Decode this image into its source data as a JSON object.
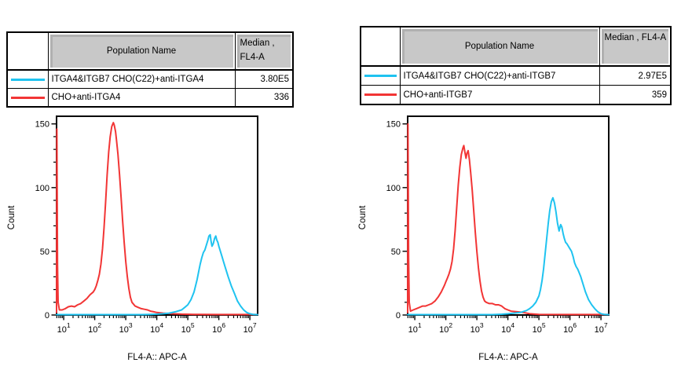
{
  "accent_colors": {
    "cyan": "#1fc3f0",
    "red": "#f23535",
    "table_header_bg": "#c8c8c8"
  },
  "panels": [
    {
      "table": {
        "col_population": "Population Name",
        "col_median": "Median ,\nFL4-A",
        "rows": [
          {
            "color": "#1fc3f0",
            "name": "ITGA4&ITGB7 CHO(C22)+anti-ITGA4",
            "median": "3.80E5"
          },
          {
            "color": "#f23535",
            "name": "CHO+anti-ITGA4",
            "median": "336"
          }
        ]
      }
    },
    {
      "table": {
        "col_population": "Population Name",
        "col_median": "Median , FL4-A",
        "rows": [
          {
            "color": "#1fc3f0",
            "name": "ITGA4&ITGB7 CHO(C22)+anti-ITGB7",
            "median": "2.97E5"
          },
          {
            "color": "#f23535",
            "name": "CHO+anti-ITGB7",
            "median": "359"
          }
        ]
      }
    }
  ],
  "chart_data": [
    {
      "type": "line",
      "title": "",
      "xlabel": "FL4-A:: APC-A",
      "ylabel": "Count",
      "x_scale": "log10",
      "xtick_base": "10",
      "xlim": [
        0.77,
        7.25
      ],
      "ylim": [
        0,
        156
      ],
      "xticks_exponents": [
        1,
        2,
        3,
        4,
        5,
        6,
        7
      ],
      "yticks": [
        0,
        50,
        100,
        150
      ],
      "ytick_minor": 10,
      "grid": false,
      "legend_position": "table-above",
      "series": [
        {
          "name": "CHO+anti-ITGA4",
          "color": "#f23535",
          "median": 336,
          "points": [
            [
              0.77,
              2
            ],
            [
              0.78,
              146
            ],
            [
              0.8,
              40
            ],
            [
              0.82,
              10
            ],
            [
              0.86,
              4
            ],
            [
              0.95,
              4
            ],
            [
              1.05,
              5
            ],
            [
              1.15,
              6.5
            ],
            [
              1.25,
              7
            ],
            [
              1.35,
              6.5
            ],
            [
              1.45,
              8
            ],
            [
              1.55,
              9
            ],
            [
              1.65,
              11
            ],
            [
              1.75,
              13
            ],
            [
              1.85,
              16
            ],
            [
              1.95,
              18
            ],
            [
              2.0,
              20
            ],
            [
              2.05,
              23
            ],
            [
              2.1,
              27
            ],
            [
              2.15,
              32
            ],
            [
              2.2,
              40
            ],
            [
              2.25,
              52
            ],
            [
              2.3,
              68
            ],
            [
              2.35,
              88
            ],
            [
              2.4,
              110
            ],
            [
              2.45,
              128
            ],
            [
              2.5,
              140
            ],
            [
              2.55,
              148
            ],
            [
              2.6,
              151
            ],
            [
              2.63,
              149
            ],
            [
              2.67,
              144
            ],
            [
              2.7,
              138
            ],
            [
              2.75,
              126
            ],
            [
              2.8,
              110
            ],
            [
              2.85,
              92
            ],
            [
              2.9,
              74
            ],
            [
              2.95,
              57
            ],
            [
              3.0,
              42
            ],
            [
              3.05,
              30
            ],
            [
              3.1,
              21
            ],
            [
              3.15,
              14
            ],
            [
              3.2,
              10
            ],
            [
              3.3,
              7
            ],
            [
              3.4,
              6
            ],
            [
              3.5,
              5
            ],
            [
              3.6,
              4.5
            ],
            [
              3.7,
              4
            ],
            [
              3.8,
              3
            ],
            [
              3.9,
              2.5
            ],
            [
              4.0,
              2
            ],
            [
              4.2,
              1.5
            ],
            [
              4.5,
              1
            ],
            [
              4.8,
              0.7
            ],
            [
              5.2,
              0.5
            ],
            [
              6.0,
              0.4
            ],
            [
              7.25,
              0.4
            ]
          ]
        },
        {
          "name": "ITGA4&ITGB7 CHO(C22)+anti-ITGA4",
          "color": "#1fc3f0",
          "median": 380000,
          "points": [
            [
              0.77,
              0.3
            ],
            [
              3.5,
              0.3
            ],
            [
              3.8,
              0.5
            ],
            [
              4.0,
              0.7
            ],
            [
              4.2,
              1
            ],
            [
              4.4,
              1.5
            ],
            [
              4.6,
              2.5
            ],
            [
              4.8,
              4
            ],
            [
              4.9,
              6
            ],
            [
              5.0,
              8
            ],
            [
              5.1,
              12
            ],
            [
              5.2,
              18
            ],
            [
              5.25,
              23
            ],
            [
              5.3,
              28
            ],
            [
              5.35,
              34
            ],
            [
              5.4,
              40
            ],
            [
              5.45,
              45
            ],
            [
              5.5,
              49
            ],
            [
              5.55,
              51
            ],
            [
              5.6,
              55
            ],
            [
              5.65,
              59
            ],
            [
              5.68,
              62
            ],
            [
              5.72,
              63
            ],
            [
              5.75,
              58
            ],
            [
              5.78,
              54
            ],
            [
              5.82,
              56
            ],
            [
              5.86,
              60
            ],
            [
              5.9,
              62
            ],
            [
              5.93,
              59
            ],
            [
              5.97,
              57
            ],
            [
              6.0,
              54
            ],
            [
              6.05,
              50
            ],
            [
              6.1,
              46
            ],
            [
              6.15,
              42
            ],
            [
              6.2,
              38
            ],
            [
              6.3,
              30
            ],
            [
              6.4,
              23
            ],
            [
              6.5,
              17
            ],
            [
              6.6,
              11
            ],
            [
              6.7,
              7
            ],
            [
              6.8,
              4
            ],
            [
              6.9,
              2
            ],
            [
              7.0,
              1
            ],
            [
              7.1,
              0.5
            ],
            [
              7.25,
              0.3
            ]
          ]
        }
      ]
    },
    {
      "type": "line",
      "title": "",
      "xlabel": "FL4-A:: APC-A",
      "ylabel": "Count",
      "x_scale": "log10",
      "xtick_base": "10",
      "xlim": [
        0.77,
        7.25
      ],
      "ylim": [
        0,
        156
      ],
      "xticks_exponents": [
        1,
        2,
        3,
        4,
        5,
        6,
        7
      ],
      "yticks": [
        0,
        50,
        100,
        150
      ],
      "ytick_minor": 10,
      "grid": false,
      "legend_position": "table-above",
      "series": [
        {
          "name": "CHO+anti-ITGB7",
          "color": "#f23535",
          "median": 359,
          "points": [
            [
              0.77,
              2
            ],
            [
              0.78,
              150
            ],
            [
              0.8,
              45
            ],
            [
              0.82,
              10
            ],
            [
              0.86,
              3
            ],
            [
              0.95,
              4
            ],
            [
              1.05,
              5
            ],
            [
              1.15,
              6
            ],
            [
              1.25,
              7
            ],
            [
              1.35,
              7
            ],
            [
              1.45,
              8
            ],
            [
              1.55,
              9
            ],
            [
              1.65,
              11
            ],
            [
              1.75,
              14
            ],
            [
              1.85,
              18
            ],
            [
              1.95,
              23
            ],
            [
              2.0,
              26
            ],
            [
              2.05,
              29
            ],
            [
              2.1,
              32
            ],
            [
              2.15,
              36
            ],
            [
              2.2,
              42
            ],
            [
              2.25,
              52
            ],
            [
              2.3,
              66
            ],
            [
              2.35,
              84
            ],
            [
              2.4,
              102
            ],
            [
              2.45,
              116
            ],
            [
              2.5,
              126
            ],
            [
              2.55,
              131
            ],
            [
              2.58,
              133
            ],
            [
              2.62,
              127
            ],
            [
              2.65,
              123
            ],
            [
              2.68,
              127
            ],
            [
              2.72,
              129
            ],
            [
              2.76,
              122
            ],
            [
              2.8,
              112
            ],
            [
              2.85,
              98
            ],
            [
              2.9,
              82
            ],
            [
              2.95,
              65
            ],
            [
              3.0,
              50
            ],
            [
              3.05,
              37
            ],
            [
              3.1,
              27
            ],
            [
              3.15,
              19
            ],
            [
              3.2,
              14
            ],
            [
              3.25,
              11
            ],
            [
              3.3,
              10
            ],
            [
              3.4,
              9
            ],
            [
              3.5,
              9
            ],
            [
              3.6,
              8
            ],
            [
              3.7,
              8
            ],
            [
              3.8,
              7
            ],
            [
              3.9,
              5
            ],
            [
              4.0,
              4
            ],
            [
              4.1,
              3
            ],
            [
              4.3,
              2.5
            ],
            [
              4.5,
              2
            ],
            [
              4.7,
              1
            ],
            [
              5.0,
              0.5
            ],
            [
              6.0,
              0.4
            ],
            [
              7.25,
              0.4
            ]
          ]
        },
        {
          "name": "ITGA4&ITGB7 CHO(C22)+anti-ITGB7",
          "color": "#1fc3f0",
          "median": 297000,
          "points": [
            [
              0.77,
              0.3
            ],
            [
              3.5,
              0.3
            ],
            [
              3.8,
              0.6
            ],
            [
              4.0,
              1
            ],
            [
              4.2,
              1.5
            ],
            [
              4.4,
              2
            ],
            [
              4.6,
              3.5
            ],
            [
              4.7,
              5
            ],
            [
              4.8,
              7
            ],
            [
              4.9,
              10
            ],
            [
              5.0,
              15
            ],
            [
              5.05,
              20
            ],
            [
              5.1,
              27
            ],
            [
              5.15,
              36
            ],
            [
              5.2,
              48
            ],
            [
              5.25,
              60
            ],
            [
              5.3,
              72
            ],
            [
              5.35,
              82
            ],
            [
              5.4,
              89
            ],
            [
              5.45,
              92
            ],
            [
              5.5,
              88
            ],
            [
              5.55,
              81
            ],
            [
              5.6,
              72
            ],
            [
              5.65,
              66
            ],
            [
              5.7,
              71
            ],
            [
              5.74,
              69
            ],
            [
              5.78,
              64
            ],
            [
              5.82,
              60
            ],
            [
              5.86,
              57
            ],
            [
              5.9,
              56
            ],
            [
              5.95,
              54
            ],
            [
              6.0,
              52
            ],
            [
              6.05,
              50
            ],
            [
              6.1,
              46
            ],
            [
              6.15,
              41
            ],
            [
              6.2,
              38
            ],
            [
              6.25,
              36
            ],
            [
              6.3,
              33
            ],
            [
              6.35,
              30
            ],
            [
              6.4,
              26
            ],
            [
              6.45,
              22
            ],
            [
              6.5,
              18
            ],
            [
              6.6,
              12
            ],
            [
              6.7,
              8
            ],
            [
              6.8,
              5
            ],
            [
              6.9,
              2.5
            ],
            [
              7.0,
              1
            ],
            [
              7.1,
              0.5
            ],
            [
              7.25,
              0.3
            ]
          ]
        }
      ]
    }
  ]
}
